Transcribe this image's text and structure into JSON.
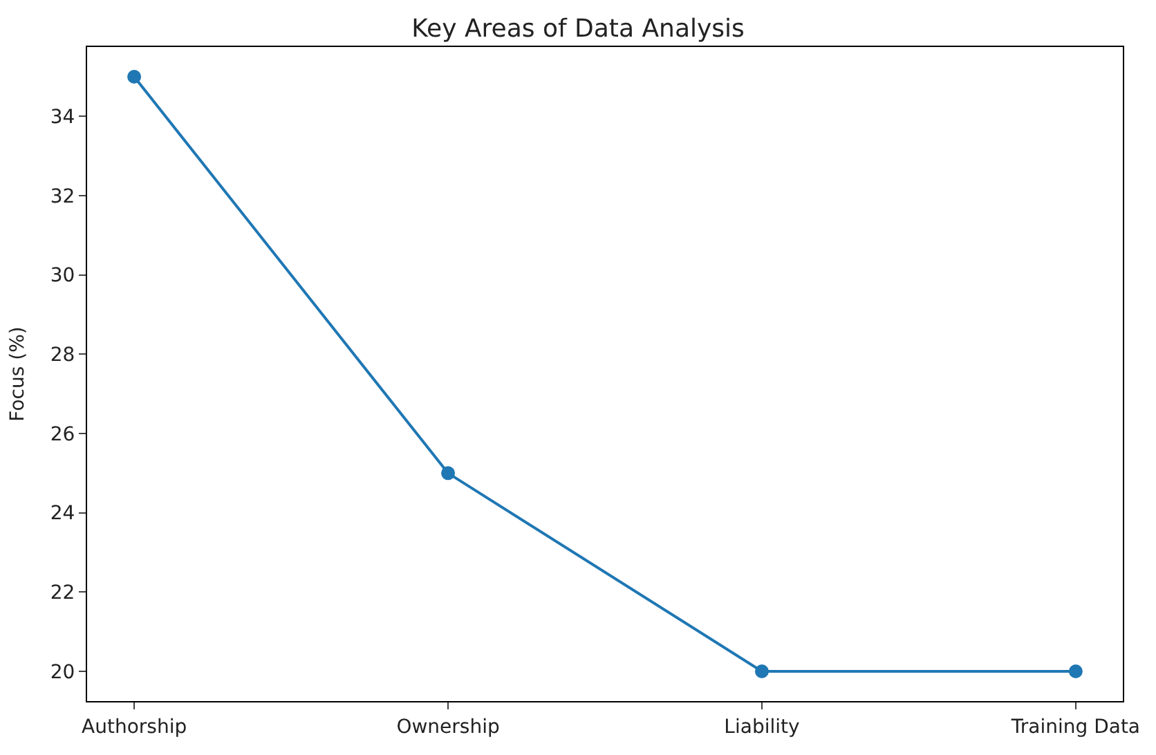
{
  "chart_data": {
    "type": "line",
    "title": "Key Areas of Data Analysis",
    "ylabel": "Focus (%)",
    "categories": [
      "Authorship",
      "Ownership",
      "Liability",
      "Training Data"
    ],
    "series": [
      {
        "color": "#1f77b4",
        "values": [
          35,
          25,
          20,
          20
        ]
      }
    ],
    "ylim": [
      19.25,
      35.75
    ],
    "yticks": [
      20,
      22,
      24,
      26,
      28,
      30,
      32,
      34
    ],
    "marker": "circle",
    "line_style": "solid"
  }
}
